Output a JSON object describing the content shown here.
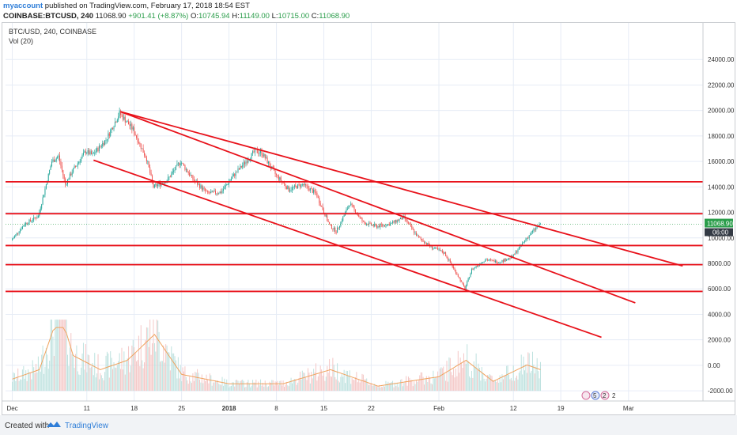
{
  "header": {
    "account": "myaccount",
    "published": "published on TradingView.com, February 17, 2018 18:54 EST",
    "symbol": "COINBASE:BTCUSD, 240",
    "last": "11068.90",
    "change": "+901.41 (+8.87%)",
    "open_label": "O:",
    "open": "10745.94",
    "high_label": "H:",
    "high": "11149.00",
    "low_label": "L:",
    "low": "10715.00",
    "close_label": "C:",
    "close": "11068.90"
  },
  "chart_meta": {
    "title": "BTC/USD, 240, COINBASE",
    "volume_label": "Vol (20)",
    "price_badge": "11068.90",
    "countdown_badge": "06:00",
    "marker_text": "5",
    "marker_text2": "2",
    "marker_text3": "2"
  },
  "footer": {
    "created_with": "Created with",
    "brand": "TradingView"
  },
  "colors": {
    "up": "#26a69a",
    "down": "#ef5350",
    "trendline": "#e8111a",
    "grid": "#e6ecf6",
    "price_badge": "#2a9d4a",
    "countdown_badge": "#333a44"
  },
  "chart_data": {
    "type": "candlestick",
    "title": "BTC/USD, 240, COINBASE",
    "y_axis": {
      "ticks": [
        24000,
        22000,
        20000,
        18000,
        16000,
        14000,
        12000,
        10000,
        8000,
        6000,
        4000,
        2000,
        0,
        -2000
      ],
      "tick_labels": [
        "24000.00",
        "22000.00",
        "20000.00",
        "18000.00",
        "16000.00",
        "14000.00",
        "12000.00",
        "10000.00",
        "8000.00",
        "6000.00",
        "4000.00",
        "2000.00",
        "0.00",
        "-2000.00"
      ],
      "range": [
        -2800,
        26000
      ]
    },
    "x_axis": {
      "tick_labels": [
        "Dec",
        "11",
        "18",
        "25",
        "2018",
        "8",
        "15",
        "22",
        "Feb",
        "12",
        "19",
        "Mar"
      ],
      "tick_days": [
        0,
        11,
        18,
        25,
        32,
        39,
        46,
        53,
        63,
        74,
        81,
        91
      ],
      "range_days": [
        -1,
        102
      ],
      "start_date": "2017-12-01"
    },
    "price_path": [
      {
        "date": "2017-12-01",
        "price": 9800
      },
      {
        "date": "2017-12-03",
        "price": 11100
      },
      {
        "date": "2017-12-05",
        "price": 11700
      },
      {
        "date": "2017-12-07",
        "price": 16000
      },
      {
        "date": "2017-12-08",
        "price": 16400
      },
      {
        "date": "2017-12-09",
        "price": 14200
      },
      {
        "date": "2017-12-10",
        "price": 15200
      },
      {
        "date": "2017-12-12",
        "price": 16800
      },
      {
        "date": "2017-12-13",
        "price": 16500
      },
      {
        "date": "2017-12-15",
        "price": 17700
      },
      {
        "date": "2017-12-17",
        "price": 19800
      },
      {
        "date": "2017-12-19",
        "price": 18500
      },
      {
        "date": "2017-12-21",
        "price": 16200
      },
      {
        "date": "2017-12-22",
        "price": 14000
      },
      {
        "date": "2017-12-24",
        "price": 14500
      },
      {
        "date": "2017-12-26",
        "price": 16000
      },
      {
        "date": "2017-12-28",
        "price": 14500
      },
      {
        "date": "2017-12-30",
        "price": 13500
      },
      {
        "date": "2018-01-01",
        "price": 13600
      },
      {
        "date": "2018-01-03",
        "price": 15000
      },
      {
        "date": "2018-01-06",
        "price": 16800
      },
      {
        "date": "2018-01-07",
        "price": 16700
      },
      {
        "date": "2018-01-09",
        "price": 15000
      },
      {
        "date": "2018-01-11",
        "price": 13800
      },
      {
        "date": "2018-01-13",
        "price": 14200
      },
      {
        "date": "2018-01-15",
        "price": 13500
      },
      {
        "date": "2018-01-17",
        "price": 11000
      },
      {
        "date": "2018-01-18",
        "price": 10500
      },
      {
        "date": "2018-01-20",
        "price": 12700
      },
      {
        "date": "2018-01-22",
        "price": 11200
      },
      {
        "date": "2018-01-24",
        "price": 10900
      },
      {
        "date": "2018-01-26",
        "price": 11100
      },
      {
        "date": "2018-01-28",
        "price": 11600
      },
      {
        "date": "2018-01-30",
        "price": 10100
      },
      {
        "date": "2018-02-01",
        "price": 9300
      },
      {
        "date": "2018-02-03",
        "price": 8800
      },
      {
        "date": "2018-02-05",
        "price": 7000
      },
      {
        "date": "2018-02-06",
        "price": 6000
      },
      {
        "date": "2018-02-07",
        "price": 7500
      },
      {
        "date": "2018-02-09",
        "price": 8300
      },
      {
        "date": "2018-02-11",
        "price": 8100
      },
      {
        "date": "2018-02-13",
        "price": 8500
      },
      {
        "date": "2018-02-15",
        "price": 9900
      },
      {
        "date": "2018-02-17",
        "price": 11068.9
      }
    ],
    "volume_envelope": [
      {
        "date": "2017-12-01",
        "value": 500
      },
      {
        "date": "2017-12-05",
        "value": 900
      },
      {
        "date": "2017-12-08",
        "value": 3400
      },
      {
        "date": "2017-12-10",
        "value": 1500
      },
      {
        "date": "2017-12-14",
        "value": 900
      },
      {
        "date": "2017-12-18",
        "value": 1300
      },
      {
        "date": "2017-12-22",
        "value": 2400
      },
      {
        "date": "2017-12-26",
        "value": 700
      },
      {
        "date": "2018-01-02",
        "value": 300
      },
      {
        "date": "2018-01-10",
        "value": 300
      },
      {
        "date": "2018-01-17",
        "value": 900
      },
      {
        "date": "2018-01-24",
        "value": 200
      },
      {
        "date": "2018-02-02",
        "value": 600
      },
      {
        "date": "2018-02-06",
        "value": 1300
      },
      {
        "date": "2018-02-10",
        "value": 400
      },
      {
        "date": "2018-02-15",
        "value": 1100
      },
      {
        "date": "2018-02-17",
        "value": 900
      }
    ],
    "horizontal_levels": [
      14400,
      11900,
      9400,
      7900,
      5800
    ],
    "trendlines": [
      {
        "from": {
          "date": "2017-12-17",
          "price": 19900
        },
        "to": {
          "date": "2018-03-10",
          "price": 7800
        }
      },
      {
        "from": {
          "date": "2017-12-17",
          "price": 19900
        },
        "to": {
          "date": "2018-03-03",
          "price": 4900
        }
      },
      {
        "from": {
          "date": "2017-12-13",
          "price": 16100
        },
        "to": {
          "date": "2018-02-26",
          "price": 2200
        }
      }
    ],
    "last_price": 11068.9,
    "grid": true
  }
}
